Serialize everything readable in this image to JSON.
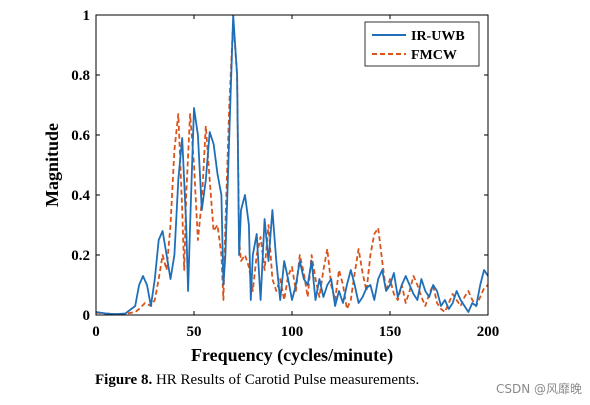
{
  "chart_data": {
    "type": "line",
    "title": "",
    "xlabel": "Frequency (cycles/minute)",
    "ylabel": "Magnitude",
    "xlim": [
      0,
      200
    ],
    "ylim": [
      0,
      1
    ],
    "xticks": [
      0,
      50,
      100,
      150,
      200
    ],
    "yticks": [
      0,
      0.2,
      0.4,
      0.6,
      0.8,
      1
    ],
    "ytick_labels": [
      "0",
      "0.2",
      "0.4",
      "0.6",
      "0.8",
      "1"
    ],
    "grid": false,
    "legend_position": "top-right",
    "series": [
      {
        "name": "IR-UWB",
        "color": "#1f6fb8",
        "style": "solid",
        "points": [
          [
            0,
            0.01
          ],
          [
            5,
            0.005
          ],
          [
            10,
            0.003
          ],
          [
            15,
            0.005
          ],
          [
            20,
            0.03
          ],
          [
            22,
            0.1
          ],
          [
            24,
            0.13
          ],
          [
            26,
            0.1
          ],
          [
            28,
            0.03
          ],
          [
            30,
            0.12
          ],
          [
            32,
            0.25
          ],
          [
            34,
            0.28
          ],
          [
            36,
            0.2
          ],
          [
            38,
            0.12
          ],
          [
            40,
            0.2
          ],
          [
            42,
            0.45
          ],
          [
            44,
            0.59
          ],
          [
            46,
            0.3
          ],
          [
            47,
            0.08
          ],
          [
            48,
            0.3
          ],
          [
            50,
            0.69
          ],
          [
            52,
            0.6
          ],
          [
            54,
            0.35
          ],
          [
            56,
            0.45
          ],
          [
            58,
            0.61
          ],
          [
            60,
            0.57
          ],
          [
            62,
            0.47
          ],
          [
            64,
            0.4
          ],
          [
            65,
            0.1
          ],
          [
            66,
            0.2
          ],
          [
            68,
            0.6
          ],
          [
            70,
            1.0
          ],
          [
            72,
            0.8
          ],
          [
            73,
            0.2
          ],
          [
            74,
            0.35
          ],
          [
            76,
            0.4
          ],
          [
            78,
            0.3
          ],
          [
            79,
            0.05
          ],
          [
            80,
            0.2
          ],
          [
            82,
            0.27
          ],
          [
            84,
            0.05
          ],
          [
            86,
            0.32
          ],
          [
            88,
            0.18
          ],
          [
            90,
            0.35
          ],
          [
            92,
            0.18
          ],
          [
            94,
            0.05
          ],
          [
            96,
            0.18
          ],
          [
            98,
            0.12
          ],
          [
            100,
            0.05
          ],
          [
            102,
            0.1
          ],
          [
            104,
            0.18
          ],
          [
            106,
            0.12
          ],
          [
            108,
            0.1
          ],
          [
            110,
            0.18
          ],
          [
            112,
            0.05
          ],
          [
            114,
            0.12
          ],
          [
            116,
            0.06
          ],
          [
            118,
            0.1
          ],
          [
            120,
            0.12
          ],
          [
            122,
            0.03
          ],
          [
            124,
            0.08
          ],
          [
            126,
            0.04
          ],
          [
            128,
            0.1
          ],
          [
            130,
            0.15
          ],
          [
            132,
            0.1
          ],
          [
            134,
            0.04
          ],
          [
            136,
            0.06
          ],
          [
            138,
            0.09
          ],
          [
            140,
            0.1
          ],
          [
            142,
            0.05
          ],
          [
            144,
            0.12
          ],
          [
            146,
            0.15
          ],
          [
            148,
            0.08
          ],
          [
            150,
            0.1
          ],
          [
            152,
            0.14
          ],
          [
            154,
            0.06
          ],
          [
            156,
            0.1
          ],
          [
            158,
            0.13
          ],
          [
            160,
            0.1
          ],
          [
            162,
            0.07
          ],
          [
            164,
            0.05
          ],
          [
            166,
            0.12
          ],
          [
            168,
            0.08
          ],
          [
            170,
            0.06
          ],
          [
            172,
            0.1
          ],
          [
            174,
            0.08
          ],
          [
            176,
            0.03
          ],
          [
            178,
            0.05
          ],
          [
            180,
            0.02
          ],
          [
            182,
            0.04
          ],
          [
            184,
            0.08
          ],
          [
            186,
            0.05
          ],
          [
            188,
            0.03
          ],
          [
            190,
            0.01
          ],
          [
            192,
            0.04
          ],
          [
            194,
            0.03
          ],
          [
            196,
            0.1
          ],
          [
            198,
            0.15
          ],
          [
            200,
            0.13
          ]
        ]
      },
      {
        "name": "FMCW",
        "color": "#d9541a",
        "style": "dashed",
        "points": [
          [
            0,
            0.008
          ],
          [
            5,
            0.005
          ],
          [
            10,
            0.003
          ],
          [
            15,
            0.004
          ],
          [
            20,
            0.01
          ],
          [
            22,
            0.02
          ],
          [
            25,
            0.04
          ],
          [
            28,
            0.03
          ],
          [
            30,
            0.05
          ],
          [
            32,
            0.12
          ],
          [
            34,
            0.2
          ],
          [
            36,
            0.15
          ],
          [
            38,
            0.3
          ],
          [
            40,
            0.55
          ],
          [
            42,
            0.67
          ],
          [
            44,
            0.35
          ],
          [
            45,
            0.15
          ],
          [
            46,
            0.4
          ],
          [
            48,
            0.67
          ],
          [
            50,
            0.5
          ],
          [
            52,
            0.25
          ],
          [
            54,
            0.38
          ],
          [
            56,
            0.63
          ],
          [
            58,
            0.45
          ],
          [
            60,
            0.28
          ],
          [
            62,
            0.3
          ],
          [
            64,
            0.2
          ],
          [
            65,
            0.05
          ],
          [
            66,
            0.3
          ],
          [
            68,
            0.7
          ],
          [
            70,
            0.98
          ],
          [
            72,
            0.8
          ],
          [
            73,
            0.25
          ],
          [
            74,
            0.18
          ],
          [
            76,
            0.2
          ],
          [
            78,
            0.16
          ],
          [
            80,
            0.08
          ],
          [
            82,
            0.2
          ],
          [
            84,
            0.26
          ],
          [
            86,
            0.15
          ],
          [
            88,
            0.3
          ],
          [
            90,
            0.12
          ],
          [
            92,
            0.08
          ],
          [
            94,
            0.12
          ],
          [
            96,
            0.05
          ],
          [
            98,
            0.13
          ],
          [
            100,
            0.16
          ],
          [
            102,
            0.08
          ],
          [
            104,
            0.2
          ],
          [
            106,
            0.14
          ],
          [
            108,
            0.06
          ],
          [
            110,
            0.2
          ],
          [
            112,
            0.12
          ],
          [
            114,
            0.06
          ],
          [
            116,
            0.15
          ],
          [
            118,
            0.22
          ],
          [
            120,
            0.1
          ],
          [
            122,
            0.05
          ],
          [
            124,
            0.15
          ],
          [
            126,
            0.1
          ],
          [
            128,
            0.02
          ],
          [
            130,
            0.05
          ],
          [
            132,
            0.14
          ],
          [
            134,
            0.22
          ],
          [
            136,
            0.14
          ],
          [
            138,
            0.08
          ],
          [
            140,
            0.2
          ],
          [
            142,
            0.27
          ],
          [
            144,
            0.29
          ],
          [
            146,
            0.18
          ],
          [
            148,
            0.08
          ],
          [
            150,
            0.12
          ],
          [
            152,
            0.07
          ],
          [
            154,
            0.05
          ],
          [
            156,
            0.1
          ],
          [
            158,
            0.04
          ],
          [
            160,
            0.08
          ],
          [
            162,
            0.13
          ],
          [
            164,
            0.1
          ],
          [
            166,
            0.06
          ],
          [
            168,
            0.03
          ],
          [
            170,
            0.07
          ],
          [
            172,
            0.1
          ],
          [
            174,
            0.04
          ],
          [
            176,
            0.02
          ],
          [
            178,
            0.01
          ],
          [
            180,
            0.04
          ],
          [
            182,
            0.07
          ],
          [
            184,
            0.05
          ],
          [
            186,
            0.03
          ],
          [
            188,
            0.06
          ],
          [
            190,
            0.08
          ],
          [
            192,
            0.05
          ],
          [
            194,
            0.03
          ],
          [
            196,
            0.06
          ],
          [
            198,
            0.09
          ],
          [
            200,
            0.1
          ]
        ]
      }
    ]
  },
  "caption": {
    "lead": "Figure 8.",
    "text": " HR Results of Carotid Pulse measurements."
  },
  "watermark": "CSDN @风靡晚"
}
